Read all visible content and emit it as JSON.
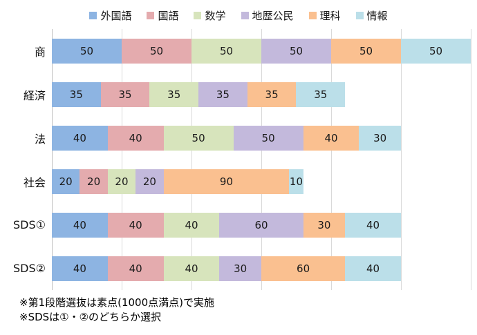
{
  "chart_data": {
    "type": "bar",
    "orientation": "horizontal",
    "stacked": true,
    "title": "",
    "categories": [
      "商",
      "経済",
      "法",
      "社会",
      "SDS①",
      "SDS②"
    ],
    "series": [
      {
        "name": "外国語",
        "color": "#8DB4E2",
        "values": [
          50,
          35,
          40,
          20,
          40,
          40
        ]
      },
      {
        "name": "国語",
        "color": "#E4ABAE",
        "values": [
          50,
          35,
          40,
          20,
          40,
          40
        ]
      },
      {
        "name": "数学",
        "color": "#D7E4BC",
        "values": [
          50,
          35,
          50,
          20,
          40,
          40
        ]
      },
      {
        "name": "地歴公民",
        "color": "#C3B9DC",
        "values": [
          50,
          35,
          50,
          20,
          60,
          30
        ]
      },
      {
        "name": "理科",
        "color": "#FAC090",
        "values": [
          50,
          35,
          40,
          90,
          30,
          60
        ]
      },
      {
        "name": "情報",
        "color": "#BBDFE9",
        "values": [
          50,
          35,
          30,
          10,
          40,
          40
        ]
      }
    ],
    "xlim": [
      0,
      300
    ],
    "gridline_interval": 50,
    "grid": true,
    "gridline_color": "#D9D9D9",
    "axis_line_color": "#BFBFBF",
    "legend_position": "top",
    "value_labels": true
  },
  "footnotes": [
    "※第1段階選抜は素点(1000点満点)で実施",
    "※SDSは①・②のどちらか選択"
  ]
}
